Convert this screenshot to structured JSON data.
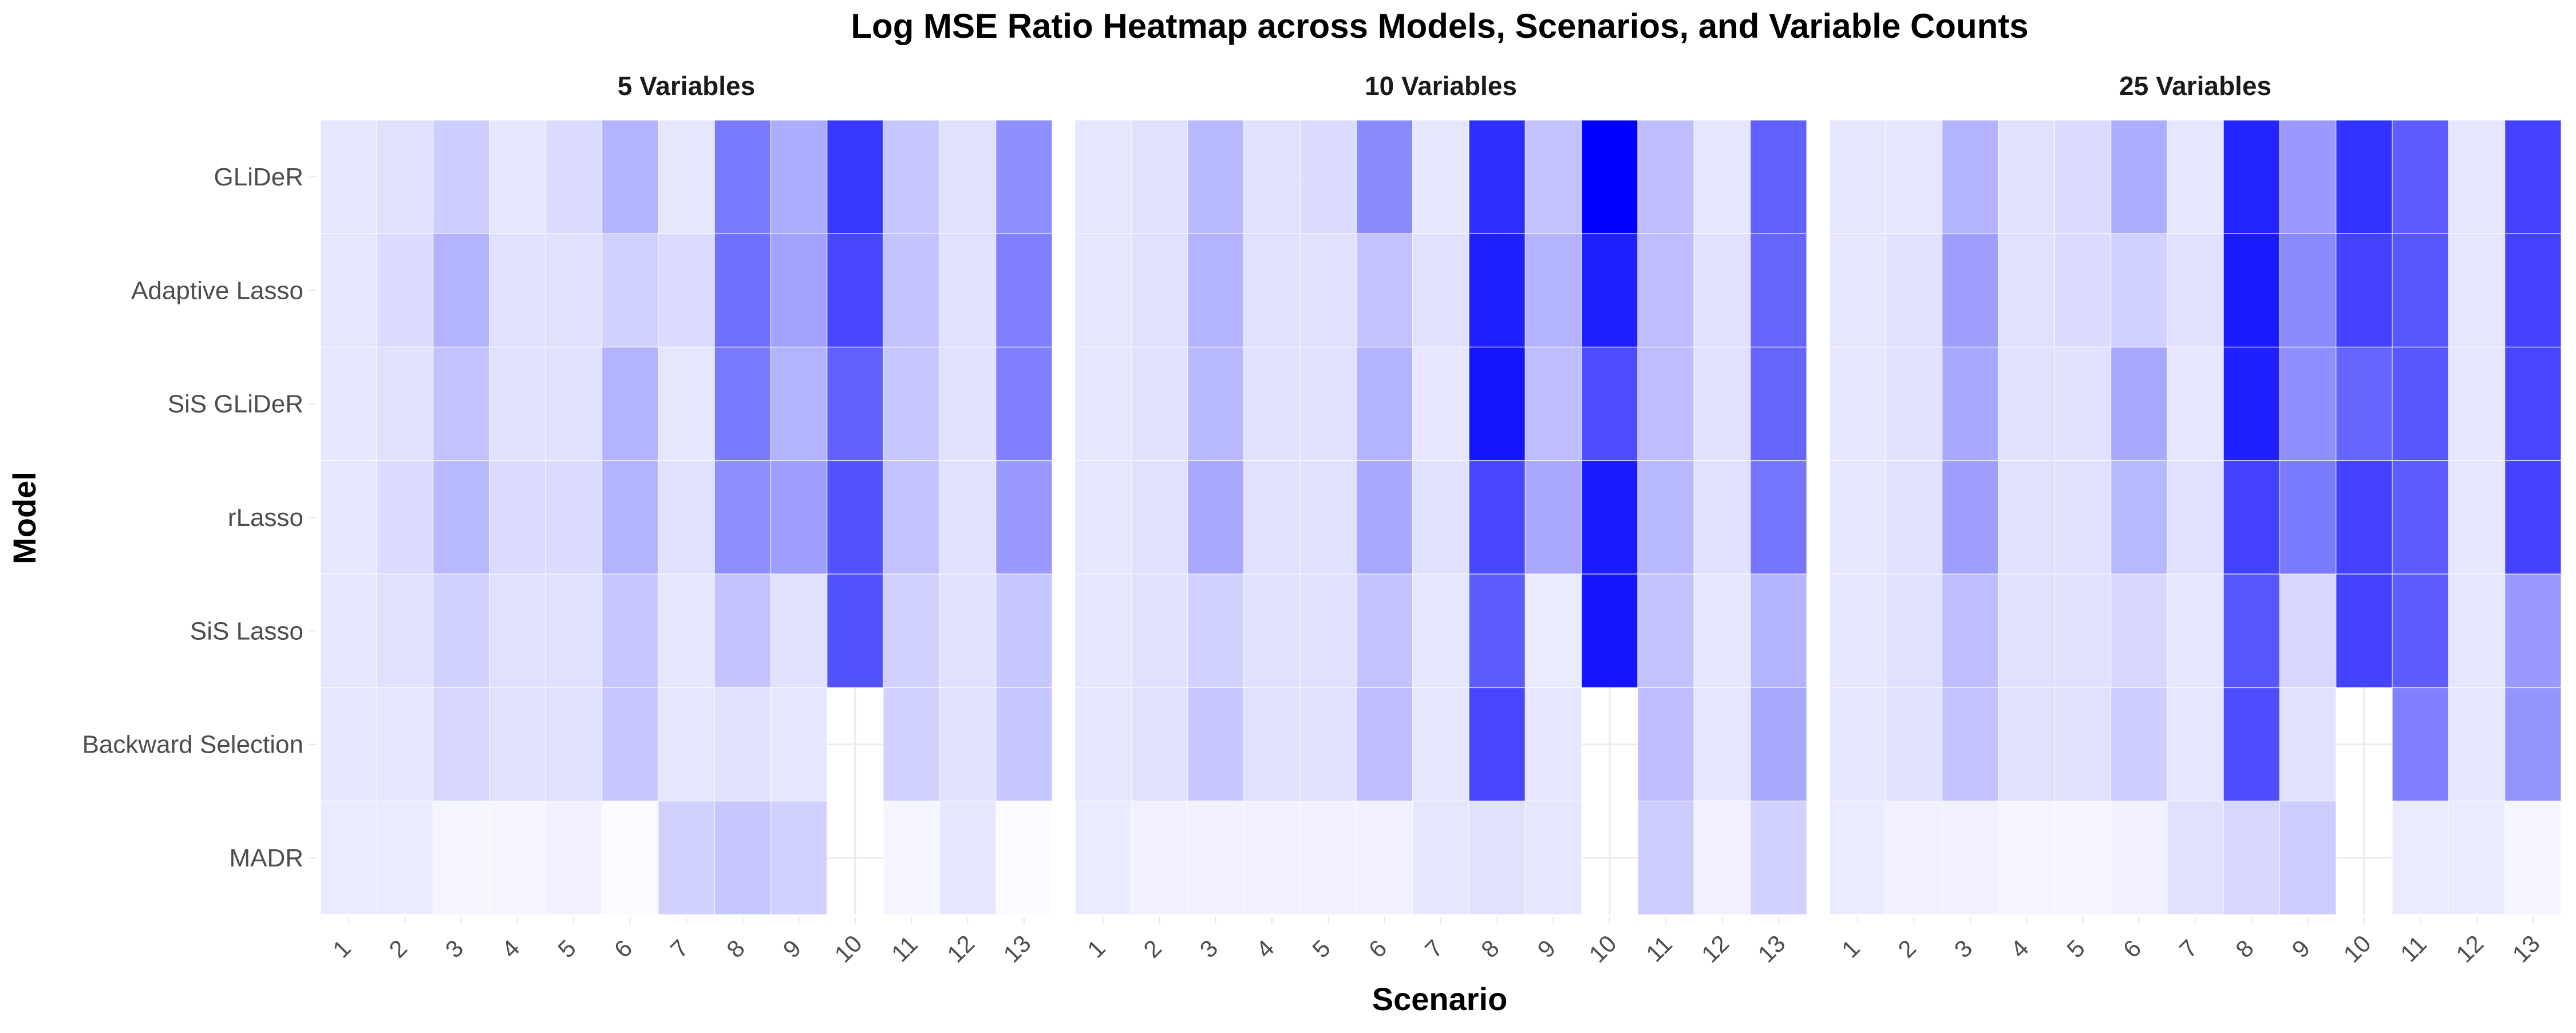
{
  "chart_data": {
    "type": "heatmap",
    "title": "Log MSE Ratio Heatmap across Models, Scenarios, and Variable Counts",
    "xlabel": "Scenario",
    "ylabel": "Model",
    "models": [
      "GLiDeR",
      "Adaptive Lasso",
      "SiS GLiDeR",
      "rLasso",
      "SiS Lasso",
      "Backward Selection",
      "MADR"
    ],
    "scenarios": [
      "1",
      "2",
      "3",
      "4",
      "5",
      "6",
      "7",
      "8",
      "9",
      "10",
      "11",
      "12",
      "13"
    ],
    "value_scale": "relative intensity 0 (white) to 1 (blue)",
    "color_low": "#ffffff",
    "color_high": "#0000ff",
    "color_na": "#ffffff",
    "grid": true,
    "legend": "none",
    "panels": [
      {
        "label": "5 Variables",
        "values": [
          [
            0.1,
            0.12,
            0.2,
            0.1,
            0.14,
            0.3,
            0.1,
            0.52,
            0.32,
            0.78,
            0.22,
            0.12,
            0.44
          ],
          [
            0.1,
            0.14,
            0.3,
            0.12,
            0.12,
            0.18,
            0.14,
            0.56,
            0.36,
            0.72,
            0.24,
            0.12,
            0.5
          ],
          [
            0.1,
            0.12,
            0.24,
            0.12,
            0.12,
            0.3,
            0.1,
            0.52,
            0.3,
            0.62,
            0.22,
            0.12,
            0.5
          ],
          [
            0.1,
            0.14,
            0.28,
            0.14,
            0.14,
            0.3,
            0.12,
            0.44,
            0.38,
            0.68,
            0.24,
            0.12,
            0.4
          ],
          [
            0.1,
            0.12,
            0.18,
            0.12,
            0.12,
            0.22,
            0.1,
            0.24,
            0.12,
            0.68,
            0.18,
            0.12,
            0.22
          ],
          [
            0.1,
            0.1,
            0.16,
            0.12,
            0.12,
            0.22,
            0.1,
            0.12,
            0.1,
            null,
            0.18,
            0.12,
            0.22
          ],
          [
            0.08,
            0.08,
            0.04,
            0.04,
            0.06,
            0.02,
            0.18,
            0.22,
            0.18,
            null,
            0.04,
            0.1,
            0.02
          ]
        ]
      },
      {
        "label": "10 Variables",
        "values": [
          [
            0.1,
            0.12,
            0.28,
            0.12,
            0.14,
            0.46,
            0.1,
            0.82,
            0.24,
            1.0,
            0.26,
            0.1,
            0.62
          ],
          [
            0.1,
            0.12,
            0.3,
            0.12,
            0.12,
            0.24,
            0.12,
            0.88,
            0.3,
            0.88,
            0.26,
            0.12,
            0.6
          ],
          [
            0.1,
            0.12,
            0.28,
            0.12,
            0.12,
            0.3,
            0.1,
            0.92,
            0.26,
            0.7,
            0.26,
            0.12,
            0.6
          ],
          [
            0.1,
            0.12,
            0.34,
            0.12,
            0.12,
            0.34,
            0.12,
            0.72,
            0.34,
            0.9,
            0.28,
            0.12,
            0.54
          ],
          [
            0.1,
            0.12,
            0.18,
            0.12,
            0.12,
            0.24,
            0.1,
            0.64,
            0.08,
            0.92,
            0.24,
            0.1,
            0.3
          ],
          [
            0.1,
            0.12,
            0.22,
            0.12,
            0.12,
            0.26,
            0.1,
            0.72,
            0.1,
            null,
            0.26,
            0.1,
            0.34
          ],
          [
            0.08,
            0.06,
            0.06,
            0.06,
            0.06,
            0.06,
            0.1,
            0.12,
            0.1,
            null,
            0.2,
            0.06,
            0.18
          ]
        ]
      },
      {
        "label": "25 Variables",
        "values": [
          [
            0.1,
            0.1,
            0.3,
            0.12,
            0.14,
            0.32,
            0.1,
            0.86,
            0.4,
            0.8,
            0.64,
            0.1,
            0.74
          ],
          [
            0.1,
            0.12,
            0.38,
            0.12,
            0.14,
            0.18,
            0.12,
            0.9,
            0.46,
            0.74,
            0.66,
            0.1,
            0.74
          ],
          [
            0.1,
            0.12,
            0.34,
            0.12,
            0.12,
            0.34,
            0.1,
            0.88,
            0.44,
            0.6,
            0.66,
            0.1,
            0.72
          ],
          [
            0.1,
            0.12,
            0.38,
            0.12,
            0.12,
            0.28,
            0.12,
            0.74,
            0.52,
            0.74,
            0.64,
            0.1,
            0.74
          ],
          [
            0.1,
            0.12,
            0.26,
            0.12,
            0.12,
            0.16,
            0.1,
            0.66,
            0.16,
            0.74,
            0.64,
            0.1,
            0.4
          ],
          [
            0.1,
            0.12,
            0.24,
            0.12,
            0.12,
            0.2,
            0.1,
            0.7,
            0.12,
            null,
            0.5,
            0.1,
            0.42
          ],
          [
            0.08,
            0.06,
            0.06,
            0.04,
            0.04,
            0.06,
            0.12,
            0.16,
            0.2,
            null,
            0.08,
            0.08,
            0.04
          ]
        ]
      }
    ]
  }
}
